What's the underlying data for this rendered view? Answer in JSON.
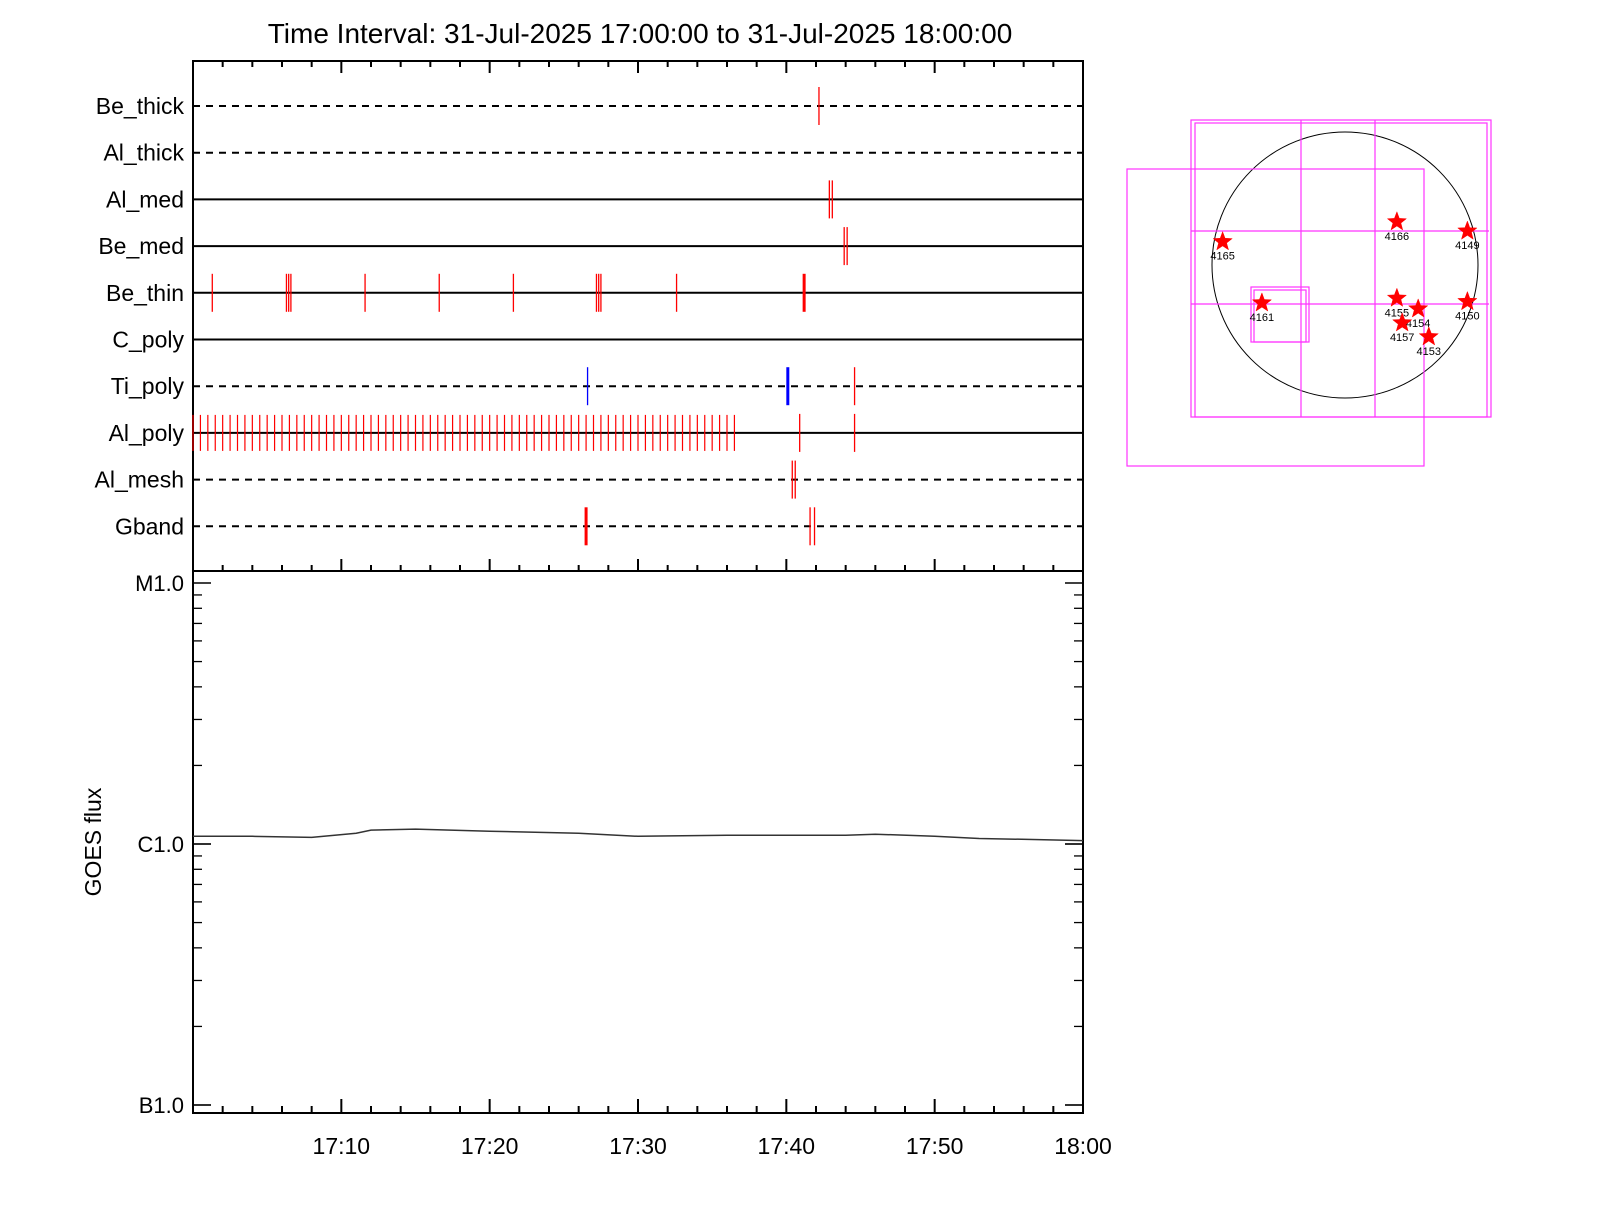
{
  "title": "Time Interval: 31-Jul-2025 17:00:00 to 31-Jul-2025 18:00:00",
  "chart_data": [
    {
      "type": "timeline",
      "name": "filter-exposures",
      "x_range_minutes": [
        0,
        60
      ],
      "rows": [
        {
          "label": "Be_thick",
          "line": "dashed",
          "events": [
            {
              "t": 42.2,
              "color": "#ff0000"
            }
          ]
        },
        {
          "label": "Al_thick",
          "line": "dashed",
          "events": []
        },
        {
          "label": "Al_med",
          "line": "solid",
          "events": [
            {
              "t": 42.9,
              "color": "#ff0000"
            },
            {
              "t": 43.1,
              "color": "#ff0000"
            }
          ]
        },
        {
          "label": "Be_med",
          "line": "solid",
          "events": [
            {
              "t": 43.9,
              "color": "#ff0000"
            },
            {
              "t": 44.1,
              "color": "#ff0000"
            }
          ]
        },
        {
          "label": "Be_thin",
          "line": "solid",
          "events": [
            {
              "t": 1.3,
              "color": "#ff0000"
            },
            {
              "t": 6.3,
              "color": "#ff0000"
            },
            {
              "t": 6.45,
              "color": "#ff0000"
            },
            {
              "t": 6.6,
              "color": "#ff0000"
            },
            {
              "t": 11.6,
              "color": "#ff0000"
            },
            {
              "t": 16.6,
              "color": "#ff0000"
            },
            {
              "t": 21.6,
              "color": "#ff0000"
            },
            {
              "t": 27.2,
              "color": "#ff0000"
            },
            {
              "t": 27.35,
              "color": "#ff0000"
            },
            {
              "t": 27.5,
              "color": "#ff0000"
            },
            {
              "t": 32.6,
              "color": "#ff0000"
            },
            {
              "t": 41.2,
              "color": "#ff0000",
              "bold": true
            }
          ]
        },
        {
          "label": "C_poly",
          "line": "solid",
          "events": []
        },
        {
          "label": "Ti_poly",
          "line": "dashed",
          "events": [
            {
              "t": 26.6,
              "color": "#0000ff"
            },
            {
              "t": 40.1,
              "color": "#0000ff",
              "bold": true
            },
            {
              "t": 44.6,
              "color": "#ff0000"
            }
          ]
        },
        {
          "label": "Al_poly",
          "line": "solid",
          "dense": {
            "start": 0.0,
            "end": 36.6,
            "step": 0.5,
            "color": "#ff0000"
          },
          "events": [
            {
              "t": 40.9,
              "color": "#ff0000"
            },
            {
              "t": 44.6,
              "color": "#ff0000"
            }
          ]
        },
        {
          "label": "Al_mesh",
          "line": "dashed",
          "events": [
            {
              "t": 40.4,
              "color": "#ff0000"
            },
            {
              "t": 40.6,
              "color": "#ff0000"
            }
          ]
        },
        {
          "label": "Gband",
          "line": "dashed",
          "events": [
            {
              "t": 26.5,
              "color": "#ff0000",
              "bold": true
            },
            {
              "t": 41.6,
              "color": "#ff0000"
            },
            {
              "t": 41.9,
              "color": "#ff0000"
            }
          ]
        }
      ]
    },
    {
      "type": "line",
      "name": "goes-flux",
      "ylabel": "GOES flux",
      "yscale": "log",
      "ylim": [
        1e-07,
        1e-05
      ],
      "ytick_labels": [
        {
          "label": "B1.0",
          "value": 1e-07
        },
        {
          "label": "C1.0",
          "value": 1e-06
        },
        {
          "label": "M1.0",
          "value": 1e-05
        }
      ],
      "x_range_minutes": [
        0,
        60
      ],
      "xtick_labels": [
        "17:10",
        "17:20",
        "17:30",
        "17:40",
        "17:50",
        "18:00"
      ],
      "xtick_minutes": [
        10,
        20,
        30,
        40,
        50,
        60
      ],
      "series": [
        {
          "color": "#333333",
          "points": [
            [
              0,
              1.07e-06
            ],
            [
              4,
              1.07e-06
            ],
            [
              8,
              1.06e-06
            ],
            [
              11,
              1.1e-06
            ],
            [
              12,
              1.13e-06
            ],
            [
              15,
              1.14e-06
            ],
            [
              20,
              1.12e-06
            ],
            [
              26,
              1.1e-06
            ],
            [
              30,
              1.07e-06
            ],
            [
              36,
              1.08e-06
            ],
            [
              40,
              1.08e-06
            ],
            [
              44,
              1.08e-06
            ],
            [
              46,
              1.09e-06
            ],
            [
              50,
              1.07e-06
            ],
            [
              53,
              1.05e-06
            ],
            [
              57,
              1.04e-06
            ],
            [
              60,
              1.03e-06
            ]
          ]
        }
      ]
    },
    {
      "type": "diagram",
      "name": "solar-disk-map",
      "regions": [
        {
          "label": "4165",
          "x": -920,
          "y": 175
        },
        {
          "label": "4166",
          "x": 390,
          "y": 325
        },
        {
          "label": "4149",
          "x": 920,
          "y": 255
        },
        {
          "label": "4161",
          "x": -625,
          "y": -285
        },
        {
          "label": "4155",
          "x": 390,
          "y": -250
        },
        {
          "label": "4154",
          "x": 550,
          "y": -330
        },
        {
          "label": "4150",
          "x": 920,
          "y": -275
        },
        {
          "label": "4157",
          "x": 430,
          "y": -435
        },
        {
          "label": "4153",
          "x": 630,
          "y": -540
        }
      ]
    }
  ]
}
